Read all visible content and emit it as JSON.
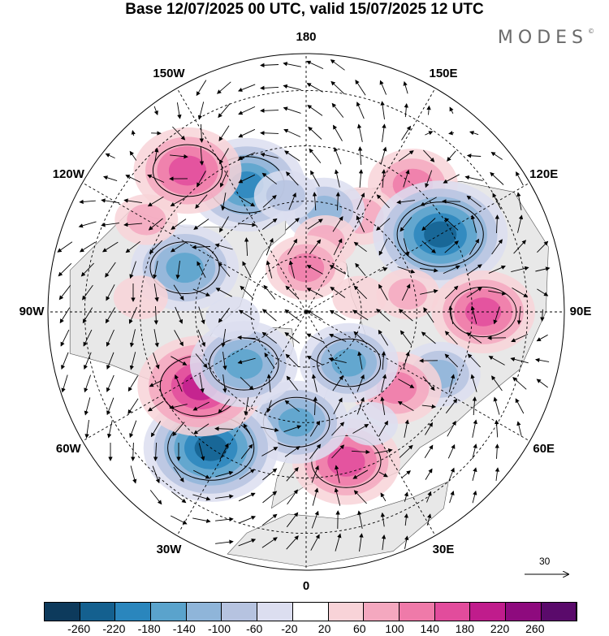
{
  "title": "Base 12/07/2025 00 UTC, valid 15/07/2025 12 UTC",
  "brand": "MODES",
  "brand_mark": "©",
  "longitude_labels": [
    {
      "text": "180",
      "lon": 180
    },
    {
      "text": "150E",
      "lon": 150
    },
    {
      "text": "120E",
      "lon": 120
    },
    {
      "text": "90E",
      "lon": 90
    },
    {
      "text": "60E",
      "lon": 60
    },
    {
      "text": "30E",
      "lon": 30
    },
    {
      "text": "0",
      "lon": 0
    },
    {
      "text": "30W",
      "lon": -30
    },
    {
      "text": "60W",
      "lon": -60
    },
    {
      "text": "90W",
      "lon": -90
    },
    {
      "text": "120W",
      "lon": -120
    },
    {
      "text": "150W",
      "lon": -150
    }
  ],
  "reference_vector": {
    "label": "30"
  },
  "colorbar": {
    "labels": [
      "-260",
      "-220",
      "-180",
      "-140",
      "-100",
      "-60",
      "-20",
      "20",
      "60",
      "100",
      "140",
      "180",
      "220",
      "260"
    ],
    "colors": [
      "#0d3a5c",
      "#14608f",
      "#2a86bd",
      "#5aa3cc",
      "#8fb5d9",
      "#b6c3e0",
      "#dcdef0",
      "#ffffff",
      "#f8d3d8",
      "#f4a8bf",
      "#ef7aa9",
      "#e24c9c",
      "#c01c8c",
      "#8e0a7e",
      "#5a0a6b"
    ]
  },
  "anomalies": [
    {
      "lon": 140,
      "lat": 45,
      "value": 120
    },
    {
      "lon": 150,
      "lat": 60,
      "value": 80
    },
    {
      "lon": 170,
      "lat": 62,
      "value": -100
    },
    {
      "lon": -155,
      "lat": 52,
      "value": -180
    },
    {
      "lon": -170,
      "lat": 58,
      "value": -60
    },
    {
      "lon": 165,
      "lat": 70,
      "value": 60
    },
    {
      "lon": 120,
      "lat": 48,
      "value": -220
    },
    {
      "lon": 100,
      "lat": 62,
      "value": 60
    },
    {
      "lon": 90,
      "lat": 42,
      "value": 150
    },
    {
      "lon": 65,
      "lat": 50,
      "value": -100
    },
    {
      "lon": 50,
      "lat": 58,
      "value": 120
    },
    {
      "lon": 40,
      "lat": 72,
      "value": -140
    },
    {
      "lon": 15,
      "lat": 48,
      "value": 160
    },
    {
      "lon": 30,
      "lat": 55,
      "value": -40
    },
    {
      "lon": -5,
      "lat": 60,
      "value": -150
    },
    {
      "lon": -35,
      "lat": 45,
      "value": -220
    },
    {
      "lon": -55,
      "lat": 55,
      "value": 200
    },
    {
      "lon": -50,
      "lat": 68,
      "value": -160
    },
    {
      "lon": -85,
      "lat": 70,
      "value": -40
    },
    {
      "lon": -110,
      "lat": 55,
      "value": -160
    },
    {
      "lon": -140,
      "lat": 40,
      "value": 160
    },
    {
      "lon": -120,
      "lat": 40,
      "value": 60
    },
    {
      "lon": -180,
      "lat": 78,
      "value": 100
    },
    {
      "lon": 105,
      "lat": 75,
      "value": 40
    },
    {
      "lon": -95,
      "lat": 45,
      "value": 40
    }
  ]
}
